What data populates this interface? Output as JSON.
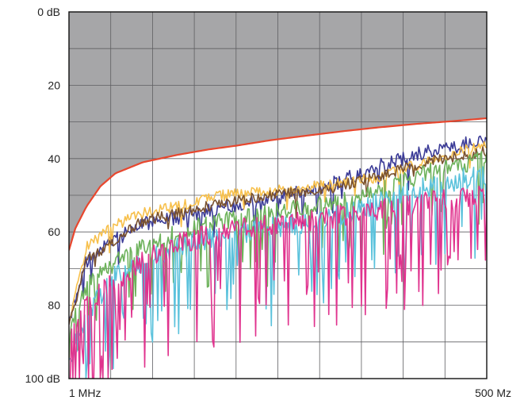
{
  "chart_data": {
    "type": "line",
    "title": "",
    "xlabel": "",
    "ylabel": "",
    "x_scale": "log",
    "x_range_mhz": [
      1,
      500
    ],
    "y_range_db": [
      0,
      100
    ],
    "y_inverted": true,
    "grid": true,
    "legend": "none",
    "x_tick_labels": [
      "1 MHz",
      "500 Mz"
    ],
    "y_tick_labels": [
      "0 dB",
      "20",
      "40",
      "60",
      "80",
      "100 dB"
    ],
    "y_tick_values": [
      0,
      20,
      40,
      60,
      80,
      100
    ],
    "limit_region_color": "#a6a6a8",
    "limit_line": {
      "color": "#e8472e",
      "x_mhz": [
        1,
        1.1,
        1.3,
        1.6,
        2,
        3,
        5,
        8,
        12,
        20,
        35,
        60,
        100,
        180,
        300,
        500
      ],
      "y_db": [
        65,
        59,
        53,
        47.5,
        44,
        41,
        39,
        37.5,
        36.5,
        35,
        33.7,
        32.5,
        31.5,
        30.5,
        29.8,
        29
      ]
    },
    "series": [
      {
        "color": "#3b3b97",
        "noise": 4,
        "dips": 0.04,
        "dip_depth": 8,
        "seed": 11,
        "x_mhz": [
          1,
          1.3,
          2,
          3,
          5,
          10,
          20,
          50,
          100,
          200,
          500
        ],
        "y_db": [
          85,
          68,
          62,
          58,
          56,
          53,
          51,
          47,
          42,
          38,
          35
        ]
      },
      {
        "color": "#f7c04c",
        "noise": 3,
        "dips": 0.03,
        "dip_depth": 6,
        "seed": 23,
        "x_mhz": [
          1,
          1.3,
          2,
          3,
          5,
          10,
          20,
          50,
          100,
          200,
          500
        ],
        "y_db": [
          85,
          64,
          58,
          55,
          53,
          50,
          49,
          47,
          45,
          41,
          36
        ]
      },
      {
        "color": "#7a5230",
        "noise": 3,
        "dips": 0.02,
        "dip_depth": 5,
        "seed": 37,
        "x_mhz": [
          1,
          1.3,
          2,
          3,
          5,
          10,
          20,
          50,
          100,
          200,
          500
        ],
        "y_db": [
          86,
          68,
          62,
          57,
          55,
          52,
          50,
          48,
          45,
          41,
          38
        ]
      },
      {
        "color": "#6db25b",
        "noise": 5,
        "dips": 0.12,
        "dip_depth": 14,
        "seed": 53,
        "x_mhz": [
          1,
          1.3,
          2,
          3,
          5,
          10,
          20,
          50,
          100,
          200,
          500
        ],
        "y_db": [
          88,
          75,
          68,
          64,
          60,
          57,
          55,
          52,
          49,
          44,
          40
        ]
      },
      {
        "color": "#5bc2dc",
        "noise": 6,
        "dips": 0.18,
        "dip_depth": 20,
        "seed": 71,
        "x_mhz": [
          1,
          1.3,
          2,
          3,
          5,
          10,
          20,
          50,
          100,
          200,
          500
        ],
        "y_db": [
          96,
          82,
          72,
          68,
          64,
          61,
          59,
          56,
          52,
          48,
          44
        ]
      },
      {
        "color": "#e0338e",
        "noise": 6,
        "dips": 0.2,
        "dip_depth": 22,
        "seed": 97,
        "x_mhz": [
          1,
          1.3,
          2,
          3,
          5,
          10,
          20,
          50,
          100,
          200,
          500
        ],
        "y_db": [
          90,
          80,
          73,
          68,
          63,
          60,
          58,
          56,
          54,
          52,
          50
        ]
      }
    ]
  }
}
